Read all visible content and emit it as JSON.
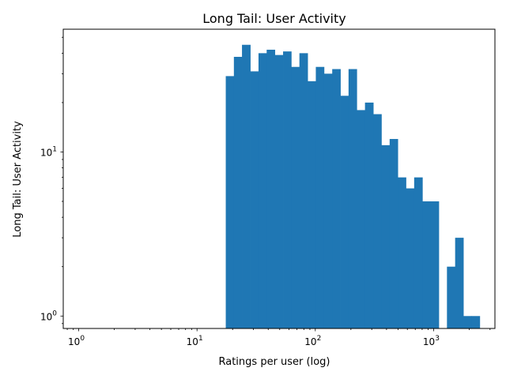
{
  "chart_data": {
    "type": "bar",
    "title": "Long Tail: User Activity",
    "xlabel": "Ratings per user (log)",
    "ylabel": "Long Tail: User Activity",
    "xscale": "log",
    "yscale": "log",
    "xlim": [
      0.74,
      3300
    ],
    "ylim": [
      0.84,
      56
    ],
    "grid": false,
    "color": "#1f77b4",
    "x_ticks": [
      {
        "base": "10",
        "exp": "0",
        "value": 1
      },
      {
        "base": "10",
        "exp": "1",
        "value": 10
      },
      {
        "base": "10",
        "exp": "2",
        "value": 100
      },
      {
        "base": "10",
        "exp": "3",
        "value": 1000
      }
    ],
    "y_ticks": [
      {
        "base": "10",
        "exp": "0",
        "value": 1
      },
      {
        "base": "10",
        "exp": "1",
        "value": 10
      }
    ],
    "bins": [
      {
        "x0": 17.5,
        "x1": 20.5,
        "count": 29
      },
      {
        "x0": 20.5,
        "x1": 24.0,
        "count": 38
      },
      {
        "x0": 24.0,
        "x1": 28.2,
        "count": 45
      },
      {
        "x0": 28.2,
        "x1": 33.1,
        "count": 31
      },
      {
        "x0": 33.1,
        "x1": 38.8,
        "count": 40
      },
      {
        "x0": 38.8,
        "x1": 45.5,
        "count": 42
      },
      {
        "x0": 45.5,
        "x1": 53.4,
        "count": 39
      },
      {
        "x0": 53.4,
        "x1": 62.6,
        "count": 41
      },
      {
        "x0": 62.6,
        "x1": 73.4,
        "count": 33
      },
      {
        "x0": 73.4,
        "x1": 86.1,
        "count": 40
      },
      {
        "x0": 86.1,
        "x1": 101,
        "count": 27
      },
      {
        "x0": 101,
        "x1": 118.5,
        "count": 33
      },
      {
        "x0": 118.5,
        "x1": 139,
        "count": 30
      },
      {
        "x0": 139,
        "x1": 163,
        "count": 32
      },
      {
        "x0": 163,
        "x1": 191,
        "count": 22
      },
      {
        "x0": 191,
        "x1": 224,
        "count": 32
      },
      {
        "x0": 224,
        "x1": 263,
        "count": 18
      },
      {
        "x0": 263,
        "x1": 309,
        "count": 20
      },
      {
        "x0": 309,
        "x1": 362,
        "count": 17
      },
      {
        "x0": 362,
        "x1": 425,
        "count": 11
      },
      {
        "x0": 425,
        "x1": 498,
        "count": 12
      },
      {
        "x0": 498,
        "x1": 584,
        "count": 7
      },
      {
        "x0": 584,
        "x1": 685,
        "count": 6
      },
      {
        "x0": 685,
        "x1": 804,
        "count": 7
      },
      {
        "x0": 804,
        "x1": 943,
        "count": 5
      },
      {
        "x0": 943,
        "x1": 1106,
        "count": 5
      },
      {
        "x0": 1106,
        "x1": 1297,
        "count": 0
      },
      {
        "x0": 1297,
        "x1": 1521,
        "count": 2
      },
      {
        "x0": 1521,
        "x1": 1785,
        "count": 3
      },
      {
        "x0": 1785,
        "x1": 2093,
        "count": 1
      },
      {
        "x0": 2093,
        "x1": 2455,
        "count": 1
      }
    ]
  }
}
